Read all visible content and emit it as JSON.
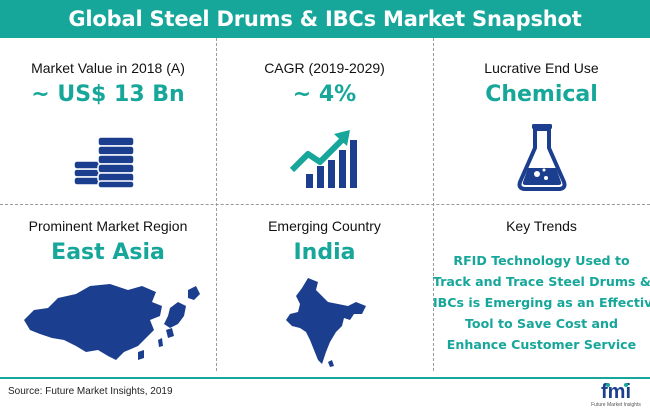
{
  "header": {
    "title": "Global Steel Drums & IBCs Market Snapshot"
  },
  "cells": {
    "market_value": {
      "label": "Market Value in 2018 (A)",
      "value": "~ US$ 13 Bn",
      "icon": "coins-stack-icon"
    },
    "cagr": {
      "label": "CAGR (2019-2029)",
      "value": "~ 4%",
      "icon": "growth-chart-icon"
    },
    "end_use": {
      "label": "Lucrative End Use",
      "value": "Chemical",
      "icon": "flask-icon"
    },
    "region": {
      "label": "Prominent Market Region",
      "value": "East Asia",
      "icon": "east-asia-map-icon"
    },
    "country": {
      "label": "Emerging Country",
      "value": "India",
      "icon": "india-map-icon"
    },
    "trends": {
      "label": "Key Trends",
      "lines": [
        "RFID Technology Used to",
        "Track and Trace Steel Drums &",
        "IBCs is Emerging as an Effective",
        "Tool to Save Cost and",
        "Enhance Customer Service"
      ]
    }
  },
  "footer": {
    "source": "Source: Future Market Insights, 2019",
    "logo_text": "fmi",
    "logo_subtext": "Future Market Insights"
  },
  "colors": {
    "accent": "#16a69a",
    "navy": "#1b3f8e"
  }
}
